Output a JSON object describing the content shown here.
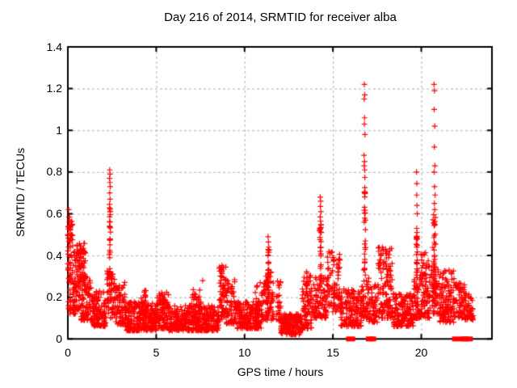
{
  "colors": {
    "marker": "#ff0000",
    "grid": "#b0b0b0",
    "axis": "#000000",
    "background": "#ffffff",
    "text": "#000000"
  },
  "chart_data": {
    "type": "scatter",
    "title": "Day 216 of 2014, SRMTID for receiver alba",
    "xlabel": "GPS time / hours",
    "ylabel": "SRMTID / TECUs",
    "xlim": [
      0,
      24
    ],
    "ylim": [
      0,
      1.4
    ],
    "x_ticks": [
      "0",
      "5",
      "10",
      "15",
      "20"
    ],
    "x_tick_values": [
      0,
      5,
      10,
      15,
      20
    ],
    "y_ticks": [
      "0",
      "0.2",
      "0.4",
      "0.6",
      "0.8",
      "1",
      "1.2",
      "1.4"
    ],
    "y_tick_values": [
      0,
      0.2,
      0.4,
      0.6,
      0.8,
      1.0,
      1.2,
      1.4
    ],
    "grid": true,
    "legend": "none",
    "marker": {
      "type": "plus",
      "color": "#ff0000",
      "size": 7
    },
    "zero_marker": {
      "type": "filled-square",
      "color": "#ff0000",
      "size": 6
    },
    "bands": [
      [
        0.0,
        0.28,
        0.26,
        0.55,
        48,
        1.0
      ],
      [
        0.0,
        0.22,
        0.45,
        0.6,
        10,
        1.0
      ],
      [
        0.02,
        0.45,
        0.12,
        0.3,
        34,
        1.2
      ],
      [
        0.28,
        0.75,
        0.14,
        0.42,
        60,
        1.3
      ],
      [
        0.45,
        1.0,
        0.27,
        0.46,
        55,
        1.0
      ],
      [
        0.75,
        1.35,
        0.09,
        0.3,
        80,
        1.5
      ],
      [
        1.35,
        2.15,
        0.06,
        0.23,
        110,
        1.5
      ],
      [
        2.1,
        2.7,
        0.1,
        0.33,
        70,
        1.4
      ],
      [
        2.7,
        3.25,
        0.07,
        0.28,
        70,
        1.5
      ],
      [
        3.25,
        5.0,
        0.04,
        0.18,
        260,
        1.6
      ],
      [
        4.15,
        4.5,
        0.1,
        0.24,
        24,
        1.2
      ],
      [
        5.0,
        5.7,
        0.05,
        0.23,
        90,
        1.5
      ],
      [
        5.7,
        8.55,
        0.04,
        0.16,
        380,
        1.5
      ],
      [
        6.95,
        7.55,
        0.08,
        0.24,
        40,
        1.3
      ],
      [
        8.55,
        8.95,
        0.09,
        0.36,
        55,
        1.4
      ],
      [
        8.95,
        9.45,
        0.07,
        0.29,
        60,
        1.5
      ],
      [
        9.45,
        10.95,
        0.05,
        0.18,
        190,
        1.5
      ],
      [
        10.6,
        10.9,
        0.1,
        0.27,
        22,
        1.3
      ],
      [
        10.95,
        11.65,
        0.09,
        0.33,
        90,
        1.5
      ],
      [
        11.8,
        12.05,
        0.08,
        0.28,
        28,
        1.4
      ],
      [
        12.05,
        13.25,
        0.02,
        0.12,
        150,
        1.3
      ],
      [
        13.25,
        13.8,
        0.05,
        0.31,
        80,
        1.5
      ],
      [
        13.8,
        14.65,
        0.1,
        0.3,
        90,
        1.4
      ],
      [
        14.65,
        15.4,
        0.13,
        0.42,
        85,
        1.3
      ],
      [
        15.4,
        16.6,
        0.06,
        0.24,
        140,
        1.5
      ],
      [
        16.6,
        17.05,
        0.1,
        0.3,
        50,
        1.4
      ],
      [
        17.05,
        17.5,
        0.08,
        0.26,
        55,
        1.4
      ],
      [
        17.5,
        18.4,
        0.1,
        0.44,
        130,
        1.5
      ],
      [
        18.4,
        19.55,
        0.06,
        0.22,
        150,
        1.5
      ],
      [
        19.55,
        19.95,
        0.1,
        0.32,
        45,
        1.4
      ],
      [
        19.95,
        20.5,
        0.1,
        0.42,
        90,
        1.6
      ],
      [
        20.55,
        21.05,
        0.12,
        0.35,
        60,
        1.3
      ],
      [
        21.05,
        21.85,
        0.08,
        0.33,
        120,
        1.5
      ],
      [
        21.85,
        22.45,
        0.1,
        0.27,
        60,
        1.3
      ],
      [
        22.45,
        22.95,
        0.09,
        0.22,
        50,
        1.3
      ]
    ],
    "spikes": [
      {
        "x": 2.38,
        "hw": 0.05,
        "y0": 0.25,
        "y1": 0.64,
        "n": 26
      },
      {
        "x": 5.4,
        "hw": 0.06,
        "y0": 0.12,
        "y1": 0.25,
        "n": 10
      },
      {
        "x": 8.72,
        "hw": 0.08,
        "y0": 0.15,
        "y1": 0.34,
        "n": 10
      },
      {
        "x": 11.34,
        "hw": 0.06,
        "y0": 0.16,
        "y1": 0.43,
        "n": 24
      },
      {
        "x": 13.52,
        "hw": 0.05,
        "y0": 0.2,
        "y1": 0.375,
        "n": 12
      },
      {
        "x": 14.3,
        "hw": 0.08,
        "y0": 0.28,
        "y1": 0.55,
        "n": 28
      },
      {
        "x": 16.8,
        "hw": 0.06,
        "y0": 0.28,
        "y1": 0.78,
        "n": 30
      },
      {
        "x": 19.75,
        "hw": 0.05,
        "y0": 0.3,
        "y1": 0.5,
        "n": 20
      },
      {
        "x": 20.74,
        "hw": 0.1,
        "y0": 0.22,
        "y1": 0.6,
        "n": 36
      }
    ],
    "points": [
      [
        0.05,
        0.62
      ],
      [
        0.07,
        0.585
      ],
      [
        0.1,
        0.57
      ],
      [
        7.63,
        0.28
      ],
      [
        2.37,
        0.81
      ],
      [
        2.39,
        0.79
      ],
      [
        2.36,
        0.77
      ],
      [
        2.38,
        0.75
      ],
      [
        2.4,
        0.73
      ],
      [
        2.37,
        0.7
      ],
      [
        2.39,
        0.67
      ],
      [
        2.36,
        0.645
      ],
      [
        11.33,
        0.49
      ],
      [
        11.35,
        0.465
      ],
      [
        11.37,
        0.44
      ],
      [
        14.28,
        0.68
      ],
      [
        14.31,
        0.66
      ],
      [
        14.29,
        0.635
      ],
      [
        14.32,
        0.61
      ],
      [
        14.28,
        0.585
      ],
      [
        14.3,
        0.565
      ],
      [
        16.78,
        1.22
      ],
      [
        16.8,
        1.17
      ],
      [
        16.77,
        1.15
      ],
      [
        16.79,
        1.06
      ],
      [
        16.78,
        1.03
      ],
      [
        16.81,
        0.98
      ],
      [
        16.76,
        0.88
      ],
      [
        16.79,
        0.85
      ],
      [
        16.77,
        0.83
      ],
      [
        16.8,
        0.81
      ],
      [
        19.73,
        0.8
      ],
      [
        19.75,
        0.745
      ],
      [
        19.74,
        0.69
      ],
      [
        19.76,
        0.64
      ],
      [
        19.77,
        0.6
      ],
      [
        19.74,
        0.53
      ],
      [
        19.76,
        0.51
      ],
      [
        20.72,
        1.22
      ],
      [
        20.75,
        1.19
      ],
      [
        20.73,
        1.1
      ],
      [
        20.76,
        1.02
      ],
      [
        20.74,
        0.92
      ],
      [
        20.77,
        0.83
      ],
      [
        20.73,
        0.8
      ],
      [
        20.75,
        0.73
      ],
      [
        20.78,
        0.69
      ],
      [
        20.74,
        0.65
      ],
      [
        20.76,
        0.62
      ]
    ],
    "zero_runs": [
      [
        15.88,
        16.12
      ],
      [
        17.0,
        17.15
      ],
      [
        17.2,
        17.31
      ],
      [
        21.88,
        22.34
      ],
      [
        22.42,
        22.54
      ],
      [
        22.62,
        22.78
      ]
    ]
  }
}
